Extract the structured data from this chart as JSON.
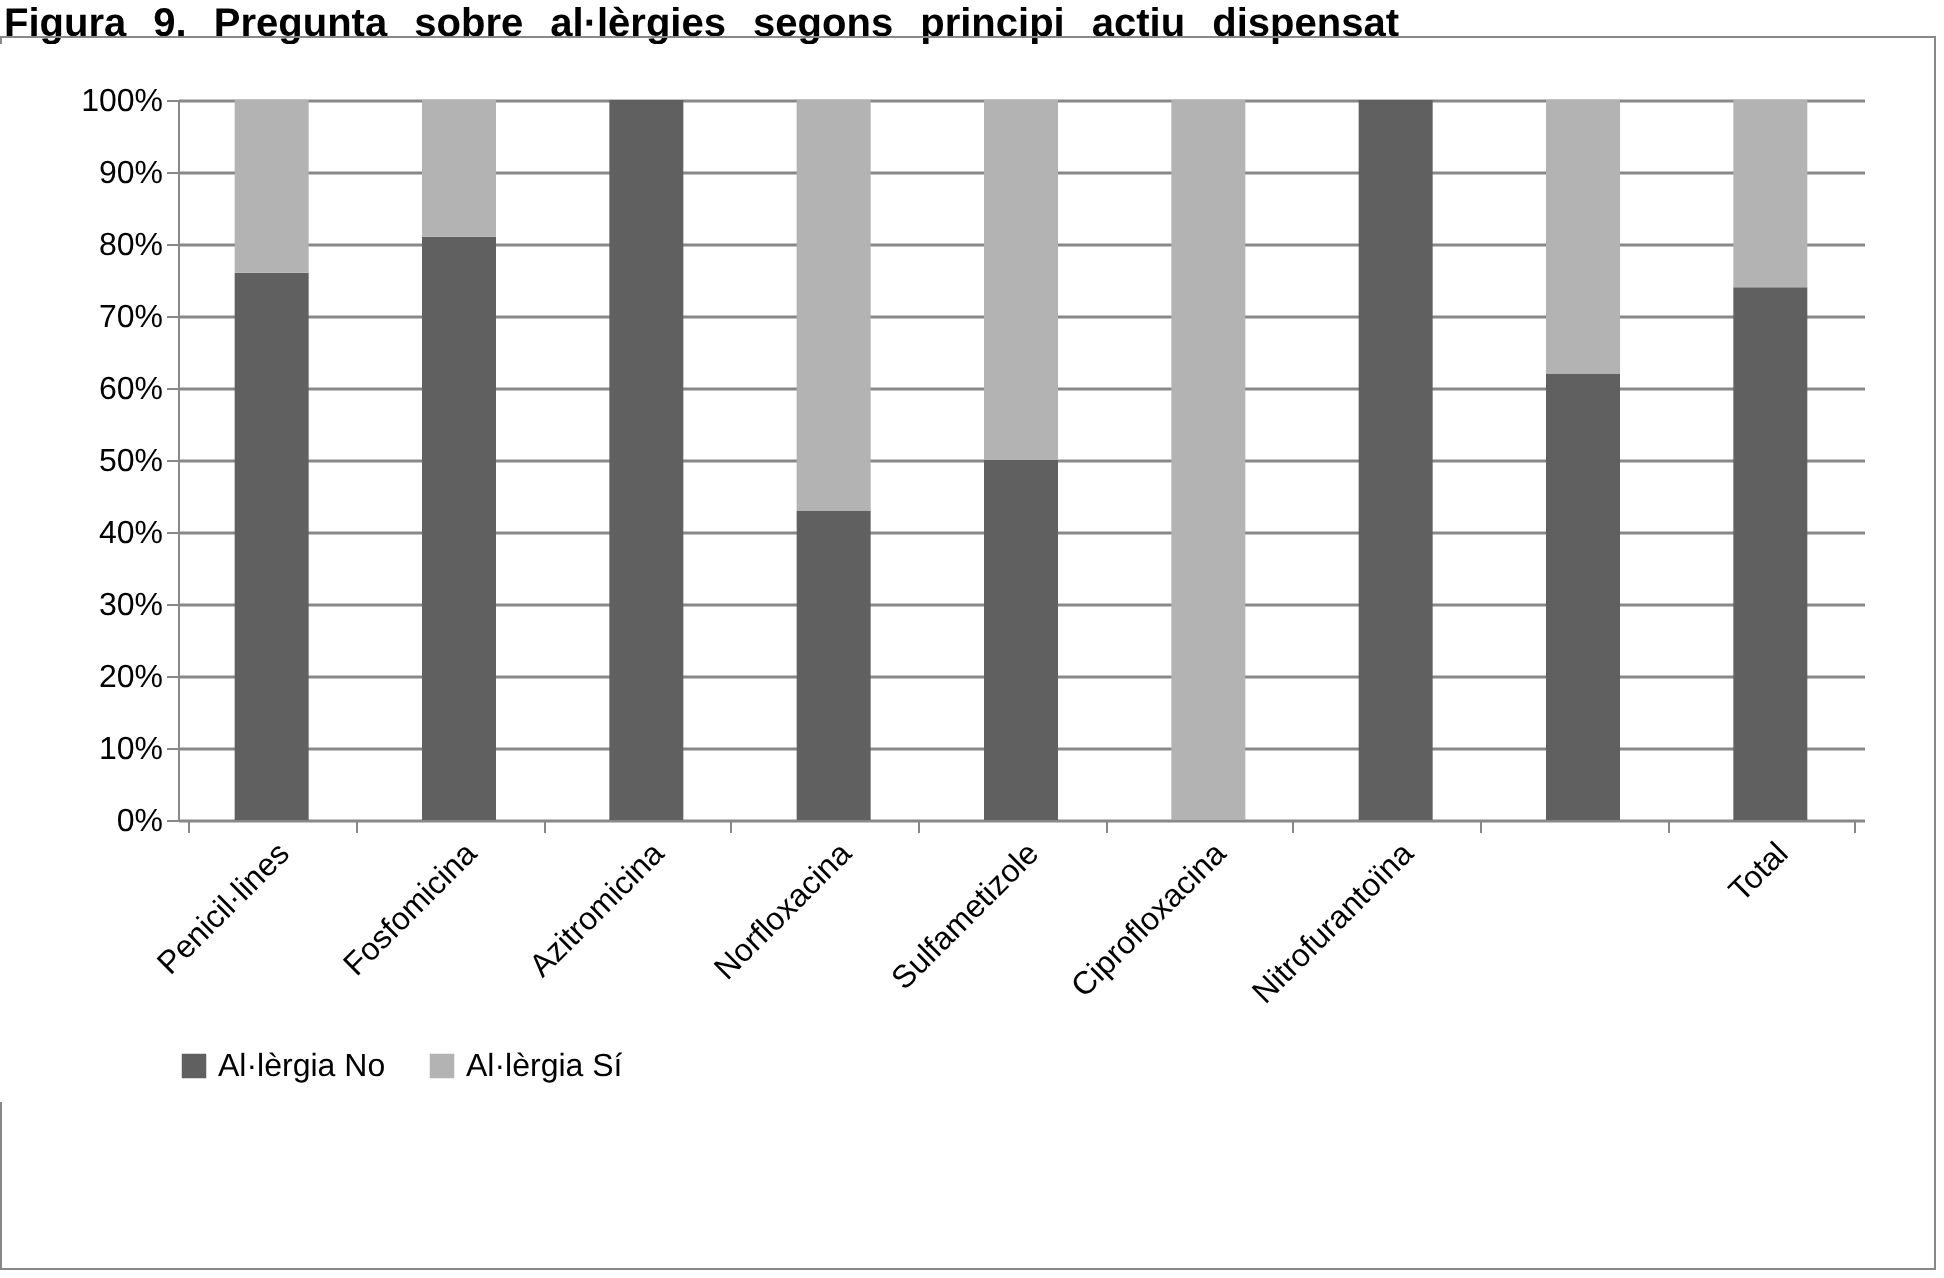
{
  "chart_data": {
    "type": "bar",
    "stacked": true,
    "title": "Figura 9. Pregunta sobre al·lèrgies segons principi actiu dispensat",
    "categories": [
      "Penicil·lines",
      "Fosfomicina",
      "Azitromicina",
      "Norfloxacina",
      "Sulfametizole",
      "Ciprofloxacina",
      "Nitrofurantoïna",
      null,
      "Total"
    ],
    "series": [
      {
        "name": "Al·lèrgia No",
        "color": "#606060",
        "values": [
          76,
          81,
          100,
          43,
          50,
          0,
          100,
          62,
          74
        ]
      },
      {
        "name": "Al·lèrgia Sí",
        "color": "#b3b3b3",
        "values": [
          24,
          19,
          0,
          57,
          50,
          100,
          0,
          38,
          26
        ]
      }
    ],
    "ylim": [
      0,
      100
    ],
    "yticks": [
      {
        "value": 0,
        "label": "0%"
      },
      {
        "value": 10,
        "label": "10%"
      },
      {
        "value": 20,
        "label": "20%"
      },
      {
        "value": 30,
        "label": "30%"
      },
      {
        "value": 40,
        "label": "40%"
      },
      {
        "value": 50,
        "label": "50%"
      },
      {
        "value": 60,
        "label": "60%"
      },
      {
        "value": 70,
        "label": "70%"
      },
      {
        "value": 80,
        "label": "80%"
      },
      {
        "value": 90,
        "label": "90%"
      },
      {
        "value": 100,
        "label": "100%"
      }
    ],
    "grid": "y",
    "legend": "bottom"
  }
}
